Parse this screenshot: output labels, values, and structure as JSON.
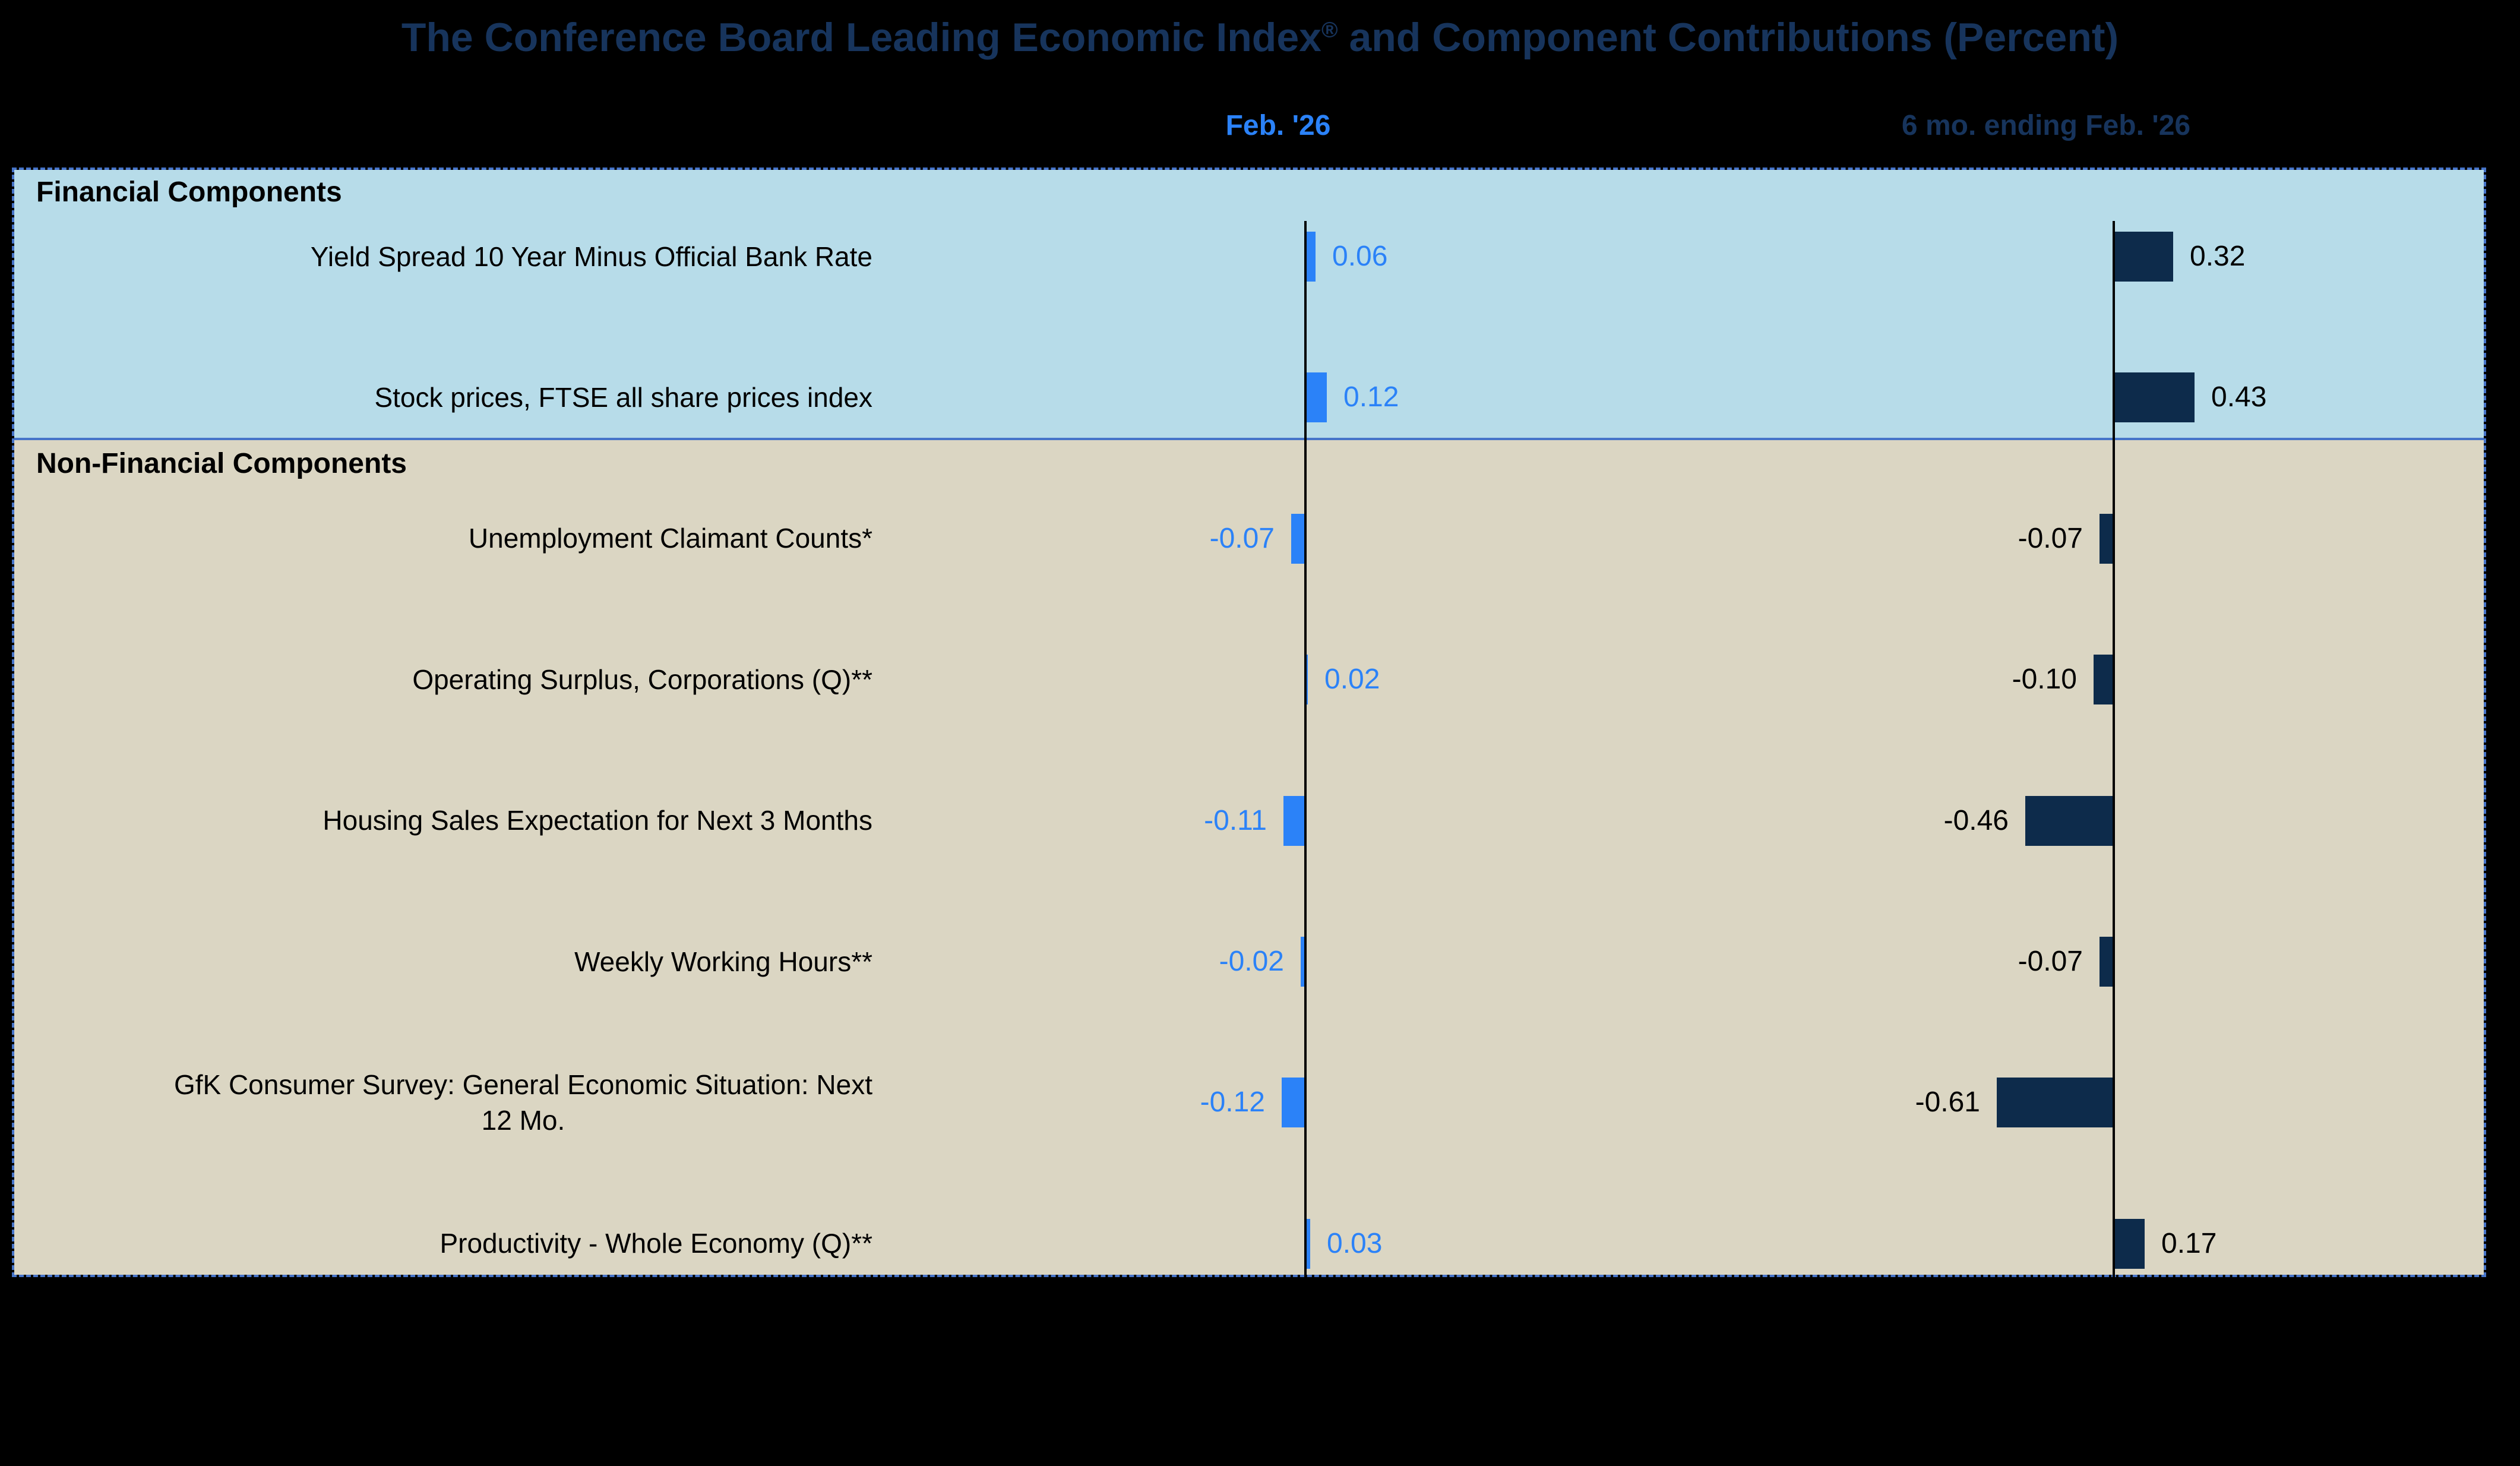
{
  "title": {
    "main": "The Conference Board Leading Economic Index",
    "registered": "®",
    "suffix": " and Component Contributions (Percent)"
  },
  "column_headers": [
    {
      "label": "Feb. '26",
      "color": "#2B82F8"
    },
    {
      "label": "6 mo. ending Feb. '26",
      "color": "#17345C"
    }
  ],
  "colors": {
    "page_background": "#000000",
    "title_text": "#17345C",
    "financial_section_background": "#B7DCE9",
    "non_financial_section_background": "#DBD6C3",
    "plot_border_blue": "#4674C9",
    "axis_line": "#000000",
    "feb_bar": "#2B82F8",
    "feb_value_text": "#2B82F8",
    "six_mo_bar": "#0D2B4B",
    "six_mo_value_text": "#000000",
    "section_label_text": "#000000",
    "category_label_text": "#000000"
  },
  "chart_data": {
    "type": "bar",
    "orientation": "horizontal",
    "title": "The Conference Board Leading Economic Index® and Component Contributions (Percent)",
    "grid": false,
    "axis_tick_labels_visible": false,
    "legend_position": "column headers above plot",
    "value_label_format": "two decimals",
    "categories": [
      "Yield Spread 10 Year Minus Official Bank Rate",
      "Stock prices, FTSE all share prices index",
      "Unemployment Claimant Counts*",
      "Operating Surplus, Corporations (Q)**",
      "Housing Sales Expectation for Next 3 Months",
      "Weekly Working Hours**",
      "GfK Consumer Survey: General Economic Situation: Next 12 Mo.",
      "Productivity - Whole Economy (Q)**"
    ],
    "category_display_lines": [
      [
        "Yield Spread 10 Year Minus Official Bank Rate"
      ],
      [
        "Stock prices, FTSE all share prices index"
      ],
      [
        "Unemployment Claimant Counts*"
      ],
      [
        "Operating Surplus, Corporations (Q)**"
      ],
      [
        "Housing Sales Expectation for Next 3 Months"
      ],
      [
        "Weekly Working Hours**"
      ],
      [
        "GfK Consumer Survey: General Economic Situation: Next",
        "12 Mo."
      ],
      [
        "Productivity - Whole Economy (Q)**"
      ]
    ],
    "series": [
      {
        "name": "Feb. '26",
        "color": "#2B82F8",
        "values": [
          0.06,
          0.12,
          -0.07,
          0.02,
          -0.11,
          -0.02,
          -0.12,
          0.03
        ]
      },
      {
        "name": "6 mo. ending Feb. '26",
        "color": "#0D2B4B",
        "values": [
          0.32,
          0.43,
          -0.07,
          -0.1,
          -0.46,
          -0.07,
          -0.61,
          0.17
        ]
      }
    ],
    "sections": [
      {
        "label": "Financial Components",
        "category_indices": [
          0,
          1
        ]
      },
      {
        "label": "Non-Financial Components",
        "category_indices": [
          2,
          3,
          4,
          5,
          6,
          7
        ]
      }
    ]
  }
}
